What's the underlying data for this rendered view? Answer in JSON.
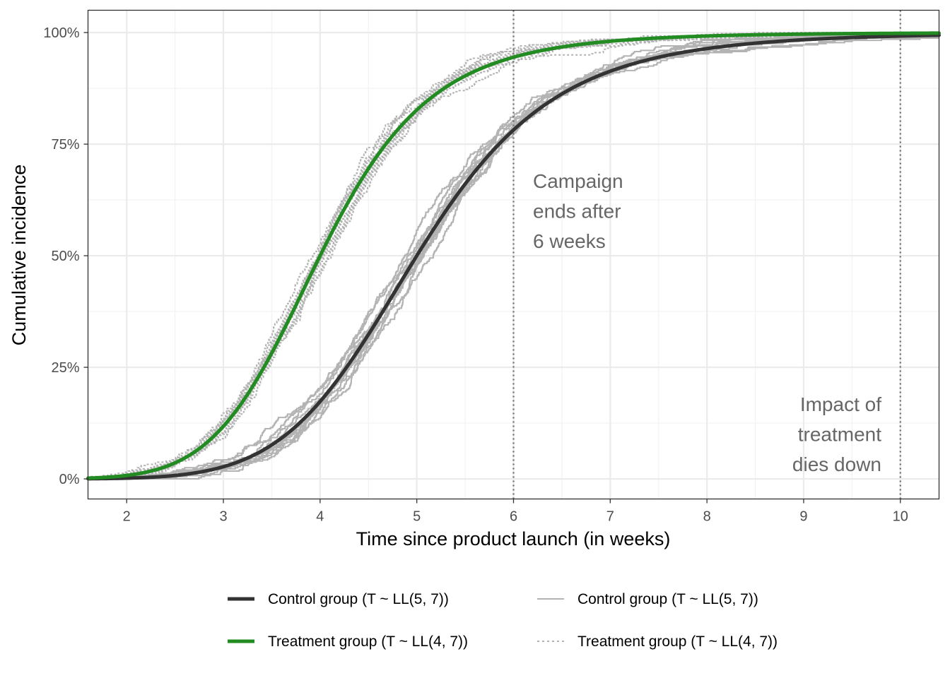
{
  "chart_data": {
    "type": "line",
    "xlabel": "Time since product launch (in weeks)",
    "ylabel": "Cumulative incidence",
    "xlim": [
      1.6,
      10.4
    ],
    "ylim": [
      -0.045,
      1.05
    ],
    "x_ticks": [
      2,
      3,
      4,
      5,
      6,
      7,
      8,
      9,
      10
    ],
    "y_ticks": [
      0,
      0.25,
      0.5,
      0.75,
      1.0
    ],
    "y_tick_labels": [
      "0%",
      "25%",
      "50%",
      "75%",
      "100%"
    ],
    "grid": true,
    "colors": {
      "control": "#333333",
      "treatment": "#228b22",
      "simulated": "#b3b3b3",
      "vline": "#666666"
    },
    "series": [
      {
        "name": "Control group (T ~ LL(5, 7))",
        "style": "thick-solid-dark",
        "distribution": {
          "family": "log-logistic",
          "scale": 5,
          "shape": 7
        },
        "x": [
          1.6,
          2,
          2.5,
          3,
          3.5,
          4,
          4.5,
          5,
          5.5,
          6,
          6.5,
          7,
          7.5,
          8,
          8.5,
          9,
          9.5,
          10,
          10.4
        ],
        "y": [
          0.0003,
          0.0016,
          0.0078,
          0.0275,
          0.076,
          0.173,
          0.324,
          0.5,
          0.661,
          0.782,
          0.862,
          0.911,
          0.942,
          0.961,
          0.974,
          0.982,
          0.987,
          0.991,
          0.993
        ]
      },
      {
        "name": "Treatment group (T ~ LL(4, 7))",
        "style": "thick-solid-green",
        "distribution": {
          "family": "log-logistic",
          "scale": 4,
          "shape": 7
        },
        "x": [
          1.6,
          2,
          2.5,
          3,
          3.5,
          4,
          4.5,
          5,
          5.5,
          6,
          6.5,
          7,
          7.5,
          8,
          8.5,
          9,
          9.5,
          10,
          10.4
        ],
        "y": [
          0.0016,
          0.0078,
          0.037,
          0.118,
          0.283,
          0.5,
          0.697,
          0.827,
          0.9,
          0.945,
          0.965,
          0.98,
          0.987,
          0.992,
          0.994,
          0.996,
          0.997,
          0.998,
          0.998
        ]
      },
      {
        "name": "Control group (T ~ LL(5, 7))",
        "style": "thin-solid-grey",
        "description": "simulated empirical cumulative incidence curves",
        "replicates": 12
      },
      {
        "name": "Treatment group (T ~ LL(4, 7))",
        "style": "thin-dotted-grey",
        "description": "simulated empirical cumulative incidence curves",
        "replicates": 12
      }
    ],
    "vlines": [
      {
        "x": 6,
        "style": "dotted",
        "annotation": [
          "Campaign",
          "ends after",
          "6 weeks"
        ]
      },
      {
        "x": 10,
        "style": "dotted",
        "annotation": [
          "Impact of",
          "treatment",
          "dies down"
        ]
      }
    ],
    "legend": {
      "position": "bottom",
      "entries": [
        {
          "label": "Control group (T ~ LL(5, 7))",
          "style": "thick-solid-dark"
        },
        {
          "label": "Control group (T ~ LL(5, 7))",
          "style": "thin-solid-grey"
        },
        {
          "label": "Treatment group (T ~ LL(4, 7))",
          "style": "thick-solid-green"
        },
        {
          "label": "Treatment group (T ~ LL(4, 7))",
          "style": "thin-dotted-grey"
        }
      ]
    }
  }
}
